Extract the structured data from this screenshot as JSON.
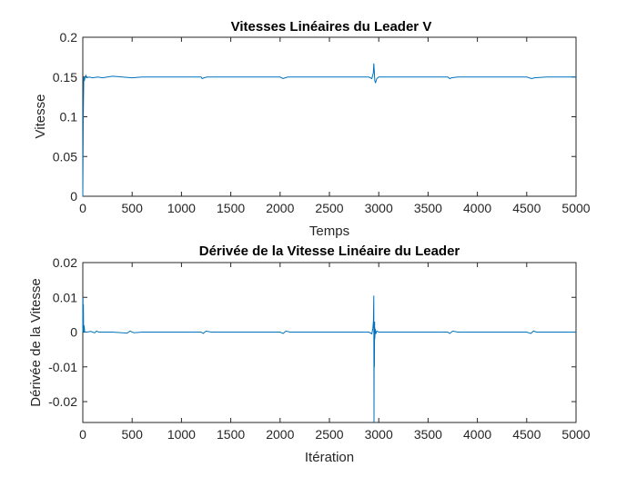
{
  "chart_data": [
    {
      "type": "line",
      "title": "Vitesses Linéaires du Leader V",
      "xlabel": "Temps",
      "ylabel": "Vitesse",
      "xlim": [
        0,
        5000
      ],
      "ylim": [
        0,
        0.2
      ],
      "xticks": [
        "0",
        "500",
        "1000",
        "1500",
        "2000",
        "2500",
        "3000",
        "3500",
        "4000",
        "4500",
        "5000"
      ],
      "yticks": [
        "0",
        "0.05",
        "0.1",
        "0.15",
        "0.2"
      ],
      "grid": false,
      "line_color": "#0072BD",
      "series": [
        {
          "x": [
            0,
            5,
            10,
            15,
            20,
            30,
            40,
            60,
            100,
            150,
            200,
            250,
            300,
            400,
            500,
            600,
            800,
            1000,
            1200,
            1210,
            1230,
            1260,
            1300,
            1500,
            1800,
            2000,
            2030,
            2050,
            2080,
            2200,
            2500,
            2800,
            2900,
            2930,
            2945,
            2950,
            2955,
            2960,
            2968,
            2980,
            3000,
            3050,
            3200,
            3500,
            3700,
            3720,
            3740,
            3800,
            4000,
            4300,
            4500,
            4550,
            4580,
            4700,
            5000
          ],
          "y": [
            0,
            0.1,
            0.15,
            0.145,
            0.148,
            0.152,
            0.149,
            0.15,
            0.149,
            0.15,
            0.149,
            0.15,
            0.151,
            0.15,
            0.149,
            0.15,
            0.15,
            0.15,
            0.15,
            0.148,
            0.149,
            0.15,
            0.15,
            0.15,
            0.15,
            0.15,
            0.148,
            0.149,
            0.15,
            0.15,
            0.15,
            0.15,
            0.15,
            0.148,
            0.155,
            0.167,
            0.157,
            0.145,
            0.143,
            0.148,
            0.15,
            0.15,
            0.15,
            0.15,
            0.15,
            0.148,
            0.149,
            0.15,
            0.15,
            0.15,
            0.15,
            0.148,
            0.149,
            0.15,
            0.15
          ]
        }
      ]
    },
    {
      "type": "line",
      "title": "Dérivée de la Vitesse Linéaire du Leader",
      "xlabel": "Itération",
      "ylabel": "Dérivée de la Vitesse",
      "xlim": [
        0,
        5000
      ],
      "ylim": [
        -0.026,
        0.02
      ],
      "xticks": [
        "0",
        "500",
        "1000",
        "1500",
        "2000",
        "2500",
        "3000",
        "3500",
        "4000",
        "4500",
        "5000"
      ],
      "yticks": [
        "0.02",
        "0.01",
        "0",
        "-0.01",
        "-0.02"
      ],
      "yticks_values": [
        0.02,
        0.01,
        0,
        -0.01,
        -0.02
      ],
      "grid": false,
      "line_color": "#0072BD",
      "series": [
        {
          "x": [
            0,
            2,
            4,
            6,
            8,
            12,
            20,
            40,
            80,
            120,
            140,
            160,
            200,
            300,
            450,
            480,
            500,
            520,
            600,
            800,
            1000,
            1200,
            1220,
            1250,
            1300,
            1500,
            1800,
            2000,
            2030,
            2060,
            2100,
            2500,
            2800,
            2900,
            2930,
            2940,
            2946,
            2950,
            2952,
            2954,
            2956,
            2958,
            2960,
            2964,
            2970,
            2980,
            3000,
            3100,
            3500,
            3700,
            3720,
            3750,
            3800,
            4000,
            4500,
            4540,
            4570,
            4600,
            5000
          ],
          "y": [
            0,
            0.01,
            0.0,
            0.008,
            0.0,
            0.002,
            0.0,
            0.0,
            0.0002,
            -0.0002,
            0.0003,
            0.0,
            0.0,
            0.0,
            -0.0003,
            0.0003,
            0.0,
            -0.0002,
            0.0,
            0.0,
            0.0,
            0.0,
            -0.0004,
            0.0003,
            0.0,
            0.0,
            0.0,
            0.0,
            -0.0004,
            0.0003,
            0.0,
            0.0,
            0.0,
            0.0,
            -0.0005,
            0.001,
            0.003,
            0.0105,
            -0.026,
            0.002,
            -0.01,
            0.003,
            -0.002,
            0.001,
            -0.0005,
            0.0003,
            0.0,
            0.0,
            0.0,
            0.0,
            -0.0004,
            0.0003,
            0.0,
            0.0,
            0.0,
            -0.0004,
            0.0003,
            0.0,
            0.0
          ]
        }
      ]
    }
  ]
}
